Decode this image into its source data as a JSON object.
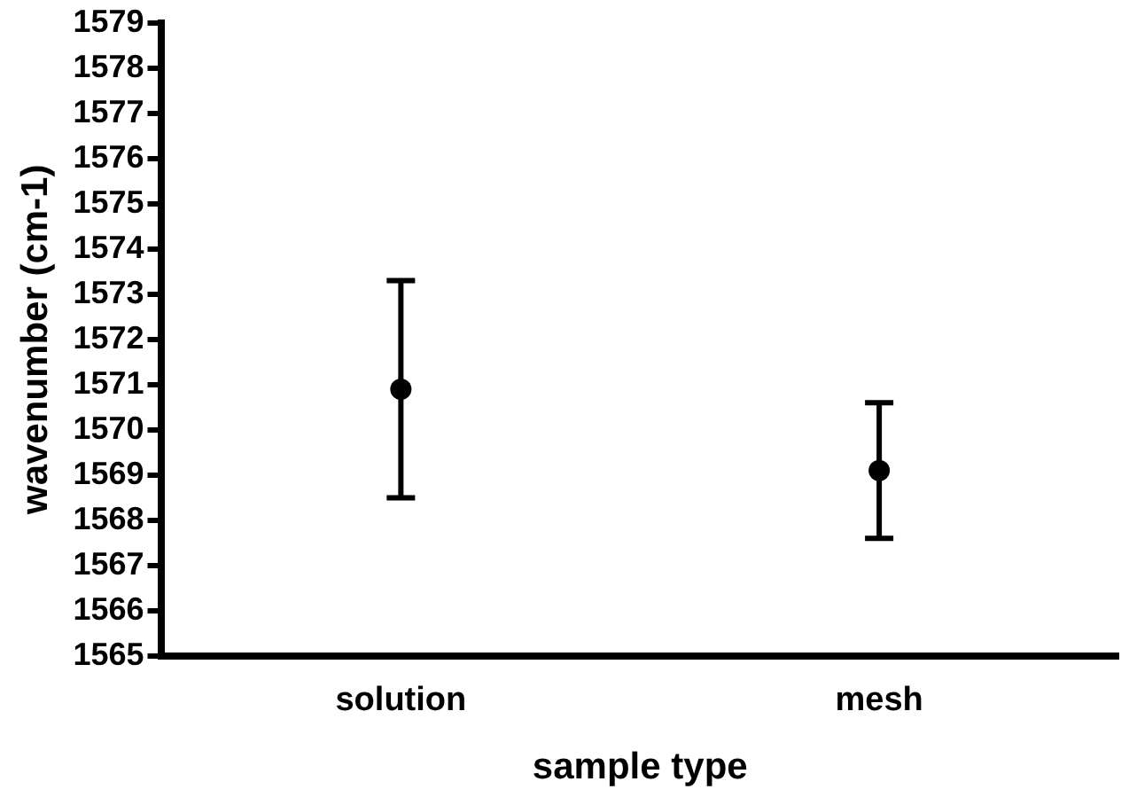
{
  "chart_data": {
    "type": "scatter",
    "xlabel": "sample type",
    "ylabel": "wavenumber (cm-1)",
    "categories": [
      "solution",
      "mesh"
    ],
    "series": [
      {
        "color": "#000000",
        "values": [
          1570.9,
          1569.1
        ],
        "errors": [
          2.4,
          1.5
        ]
      }
    ],
    "ylim": [
      1565,
      1579
    ],
    "yticks": [
      1565,
      1566,
      1567,
      1568,
      1569,
      1570,
      1571,
      1572,
      1573,
      1574,
      1575,
      1576,
      1577,
      1578,
      1579
    ],
    "grid": false,
    "legend": false,
    "marker": "circle"
  }
}
